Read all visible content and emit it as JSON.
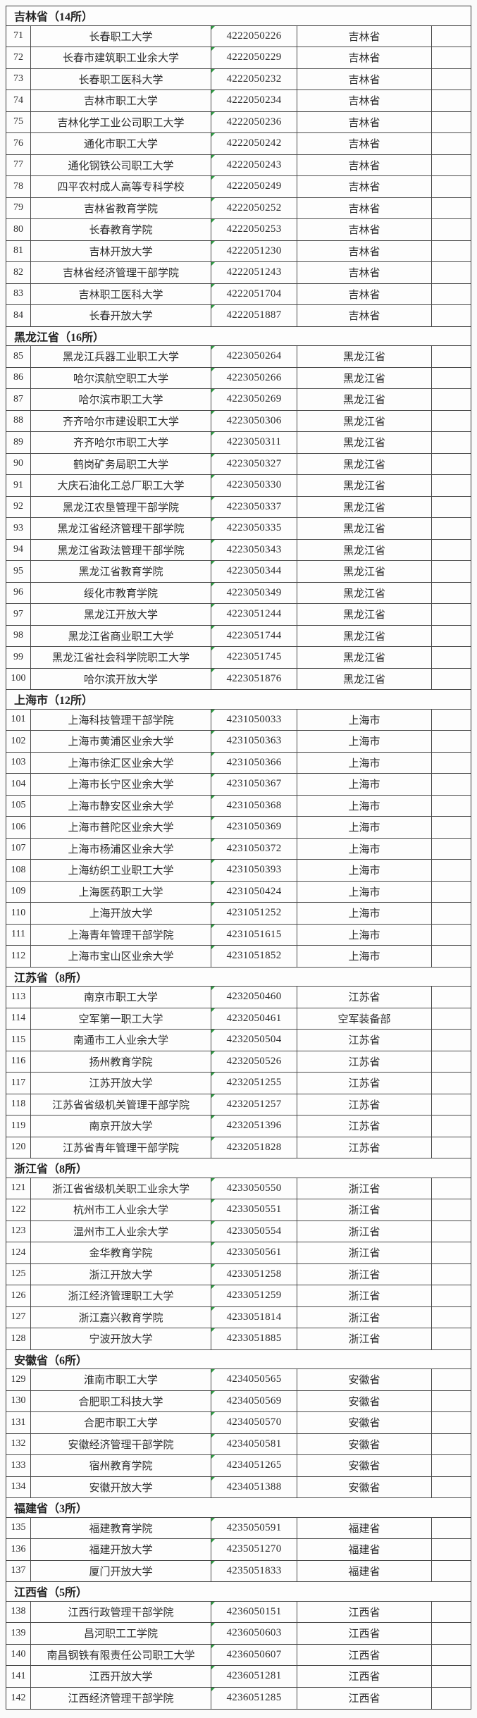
{
  "colors": {
    "page_background": "#fafafa",
    "cell_background": "#fdfdfd",
    "grid_border": "#4a4a4a",
    "outer_border": "#3a3a3a",
    "text": "#2c2c2c",
    "error_indicator_green": "#2f9e44"
  },
  "table": {
    "sections": [
      {
        "header": "吉林省（14所）",
        "rows": [
          {
            "num": "71",
            "name": "长春职工大学",
            "code": "4222050226",
            "province": "吉林省"
          },
          {
            "num": "72",
            "name": "长春市建筑职工业余大学",
            "code": "4222050229",
            "province": "吉林省"
          },
          {
            "num": "73",
            "name": "长春职工医科大学",
            "code": "4222050232",
            "province": "吉林省"
          },
          {
            "num": "74",
            "name": "吉林市职工大学",
            "code": "4222050234",
            "province": "吉林省"
          },
          {
            "num": "75",
            "name": "吉林化学工业公司职工大学",
            "code": "4222050236",
            "province": "吉林省"
          },
          {
            "num": "76",
            "name": "通化市职工大学",
            "code": "4222050242",
            "province": "吉林省"
          },
          {
            "num": "77",
            "name": "通化钢铁公司职工大学",
            "code": "4222050243",
            "province": "吉林省"
          },
          {
            "num": "78",
            "name": "四平农村成人高等专科学校",
            "code": "4222050249",
            "province": "吉林省"
          },
          {
            "num": "79",
            "name": "吉林省教育学院",
            "code": "4222050252",
            "province": "吉林省"
          },
          {
            "num": "80",
            "name": "长春教育学院",
            "code": "4222050253",
            "province": "吉林省"
          },
          {
            "num": "81",
            "name": "吉林开放大学",
            "code": "4222051230",
            "province": "吉林省"
          },
          {
            "num": "82",
            "name": "吉林省经济管理干部学院",
            "code": "4222051243",
            "province": "吉林省"
          },
          {
            "num": "83",
            "name": "吉林职工医科大学",
            "code": "4222051704",
            "province": "吉林省"
          },
          {
            "num": "84",
            "name": "长春开放大学",
            "code": "4222051887",
            "province": "吉林省"
          }
        ]
      },
      {
        "header": "黑龙江省（16所）",
        "rows": [
          {
            "num": "85",
            "name": "黑龙江兵器工业职工大学",
            "code": "4223050264",
            "province": "黑龙江省"
          },
          {
            "num": "86",
            "name": "哈尔滨航空职工大学",
            "code": "4223050266",
            "province": "黑龙江省"
          },
          {
            "num": "87",
            "name": "哈尔滨市职工大学",
            "code": "4223050269",
            "province": "黑龙江省"
          },
          {
            "num": "88",
            "name": "齐齐哈尔市建设职工大学",
            "code": "4223050306",
            "province": "黑龙江省"
          },
          {
            "num": "89",
            "name": "齐齐哈尔市职工大学",
            "code": "4223050311",
            "province": "黑龙江省"
          },
          {
            "num": "90",
            "name": "鹤岗矿务局职工大学",
            "code": "4223050327",
            "province": "黑龙江省"
          },
          {
            "num": "91",
            "name": "大庆石油化工总厂职工大学",
            "code": "4223050330",
            "province": "黑龙江省"
          },
          {
            "num": "92",
            "name": "黑龙江农垦管理干部学院",
            "code": "4223050337",
            "province": "黑龙江省"
          },
          {
            "num": "93",
            "name": "黑龙江省经济管理干部学院",
            "code": "4223050335",
            "province": "黑龙江省"
          },
          {
            "num": "94",
            "name": "黑龙江省政法管理干部学院",
            "code": "4223050343",
            "province": "黑龙江省"
          },
          {
            "num": "95",
            "name": "黑龙江省教育学院",
            "code": "4223050344",
            "province": "黑龙江省"
          },
          {
            "num": "96",
            "name": "绥化市教育学院",
            "code": "4223050349",
            "province": "黑龙江省"
          },
          {
            "num": "97",
            "name": "黑龙江开放大学",
            "code": "4223051244",
            "province": "黑龙江省"
          },
          {
            "num": "98",
            "name": "黑龙江省商业职工大学",
            "code": "4223051744",
            "province": "黑龙江省"
          },
          {
            "num": "99",
            "name": "黑龙江省社会科学院职工大学",
            "code": "4223051745",
            "province": "黑龙江省"
          },
          {
            "num": "100",
            "name": "哈尔滨开放大学",
            "code": "4223051876",
            "province": "黑龙江省"
          }
        ]
      },
      {
        "header": "上海市（12所）",
        "rows": [
          {
            "num": "101",
            "name": "上海科技管理干部学院",
            "code": "4231050033",
            "province": "上海市"
          },
          {
            "num": "102",
            "name": "上海市黄浦区业余大学",
            "code": "4231050363",
            "province": "上海市"
          },
          {
            "num": "103",
            "name": "上海市徐汇区业余大学",
            "code": "4231050366",
            "province": "上海市"
          },
          {
            "num": "104",
            "name": "上海市长宁区业余大学",
            "code": "4231050367",
            "province": "上海市"
          },
          {
            "num": "105",
            "name": "上海市静安区业余大学",
            "code": "4231050368",
            "province": "上海市"
          },
          {
            "num": "106",
            "name": "上海市普陀区业余大学",
            "code": "4231050369",
            "province": "上海市"
          },
          {
            "num": "107",
            "name": "上海市杨浦区业余大学",
            "code": "4231050372",
            "province": "上海市"
          },
          {
            "num": "108",
            "name": "上海纺织工业职工大学",
            "code": "4231050393",
            "province": "上海市"
          },
          {
            "num": "109",
            "name": "上海医药职工大学",
            "code": "4231050424",
            "province": "上海市"
          },
          {
            "num": "110",
            "name": "上海开放大学",
            "code": "4231051252",
            "province": "上海市"
          },
          {
            "num": "111",
            "name": "上海青年管理干部学院",
            "code": "4231051615",
            "province": "上海市"
          },
          {
            "num": "112",
            "name": "上海市宝山区业余大学",
            "code": "4231051852",
            "province": "上海市"
          }
        ]
      },
      {
        "header": "江苏省（8所）",
        "rows": [
          {
            "num": "113",
            "name": "南京市职工大学",
            "code": "4232050460",
            "province": "江苏省"
          },
          {
            "num": "114",
            "name": "空军第一职工大学",
            "code": "4232050461",
            "province": "空军装备部"
          },
          {
            "num": "115",
            "name": "南通市工人业余大学",
            "code": "4232050504",
            "province": "江苏省"
          },
          {
            "num": "116",
            "name": "扬州教育学院",
            "code": "4232050526",
            "province": "江苏省"
          },
          {
            "num": "117",
            "name": "江苏开放大学",
            "code": "4232051255",
            "province": "江苏省"
          },
          {
            "num": "118",
            "name": "江苏省省级机关管理干部学院",
            "code": "4232051257",
            "province": "江苏省"
          },
          {
            "num": "119",
            "name": "南京开放大学",
            "code": "4232051396",
            "province": "江苏省"
          },
          {
            "num": "120",
            "name": "江苏省青年管理干部学院",
            "code": "4232051828",
            "province": "江苏省"
          }
        ]
      },
      {
        "header": "浙江省（8所）",
        "rows": [
          {
            "num": "121",
            "name": "浙江省省级机关职工业余大学",
            "code": "4233050550",
            "province": "浙江省"
          },
          {
            "num": "122",
            "name": "杭州市工人业余大学",
            "code": "4233050551",
            "province": "浙江省"
          },
          {
            "num": "123",
            "name": "温州市工人业余大学",
            "code": "4233050554",
            "province": "浙江省"
          },
          {
            "num": "124",
            "name": "金华教育学院",
            "code": "4233050561",
            "province": "浙江省"
          },
          {
            "num": "125",
            "name": "浙江开放大学",
            "code": "4233051258",
            "province": "浙江省"
          },
          {
            "num": "126",
            "name": "浙江经济管理职工大学",
            "code": "4233051259",
            "province": "浙江省"
          },
          {
            "num": "127",
            "name": "浙江嘉兴教育学院",
            "code": "4233051814",
            "province": "浙江省"
          },
          {
            "num": "128",
            "name": "宁波开放大学",
            "code": "4233051885",
            "province": "浙江省"
          }
        ]
      },
      {
        "header": "安徽省（6所）",
        "rows": [
          {
            "num": "129",
            "name": "淮南市职工大学",
            "code": "4234050565",
            "province": "安徽省"
          },
          {
            "num": "130",
            "name": "合肥职工科技大学",
            "code": "4234050569",
            "province": "安徽省"
          },
          {
            "num": "131",
            "name": "合肥市职工大学",
            "code": "4234050570",
            "province": "安徽省"
          },
          {
            "num": "132",
            "name": "安徽经济管理干部学院",
            "code": "4234050581",
            "province": "安徽省"
          },
          {
            "num": "133",
            "name": "宿州教育学院",
            "code": "4234051265",
            "province": "安徽省"
          },
          {
            "num": "134",
            "name": "安徽开放大学",
            "code": "4234051388",
            "province": "安徽省"
          }
        ]
      },
      {
        "header": "福建省（3所）",
        "rows": [
          {
            "num": "135",
            "name": "福建教育学院",
            "code": "4235050591",
            "province": "福建省"
          },
          {
            "num": "136",
            "name": "福建开放大学",
            "code": "4235051270",
            "province": "福建省"
          },
          {
            "num": "137",
            "name": "厦门开放大学",
            "code": "4235051833",
            "province": "福建省"
          }
        ]
      },
      {
        "header": "江西省（5所）",
        "rows": [
          {
            "num": "138",
            "name": "江西行政管理干部学院",
            "code": "4236050151",
            "province": "江西省"
          },
          {
            "num": "139",
            "name": "昌河职工工学院",
            "code": "4236050603",
            "province": "江西省"
          },
          {
            "num": "140",
            "name": "南昌钢铁有限责任公司职工大学",
            "code": "4236050607",
            "province": "江西省"
          },
          {
            "num": "141",
            "name": "江西开放大学",
            "code": "4236051281",
            "province": "江西省"
          },
          {
            "num": "142",
            "name": "江西经济管理干部学院",
            "code": "4236051285",
            "province": "江西省"
          }
        ]
      }
    ]
  }
}
